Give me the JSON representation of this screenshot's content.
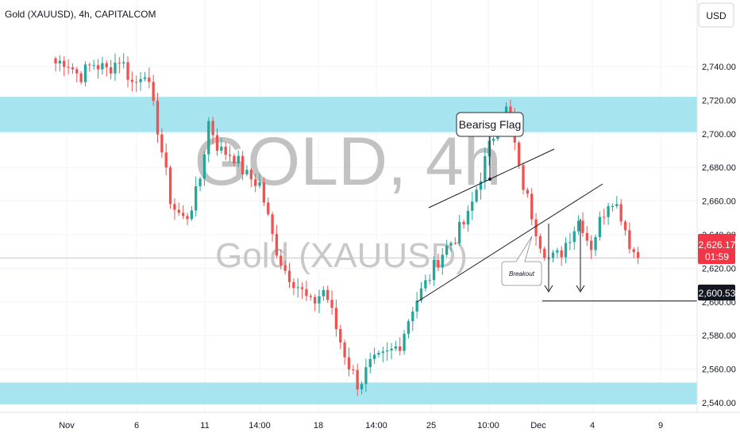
{
  "header": {
    "symbol_title": "Gold (XAUUSD), 4h, CAPITALCOM",
    "currency_button": "USD"
  },
  "watermark": {
    "main": "GOLD, 4h",
    "sub": "Gold (XAUUSD)"
  },
  "price_labels": {
    "current_price": "2,626.17",
    "countdown": "01:59",
    "target_price": "2,600.53"
  },
  "annotations": {
    "flag_label": "Bearisg Flag",
    "breakout_label": "Breakout"
  },
  "colors": {
    "bull": "#26a69a",
    "bear": "#ef5350",
    "zone": "#a6e4ef",
    "price_badge": "#f23645",
    "target_badge": "#131722"
  },
  "chart_data": {
    "type": "candlestick",
    "symbol": "Gold (XAUUSD)",
    "interval": "4h",
    "source": "CAPITALCOM",
    "y_axis": {
      "ticks": [
        2540,
        2560,
        2580,
        2600,
        2620,
        2640,
        2660,
        2680,
        2700,
        2720,
        2740
      ],
      "tick_labels": [
        "2,540.00",
        "2,560.00",
        "2,580.00",
        "2,600.00",
        "2,620.00",
        "2,640.00",
        "2,660.00",
        "2,680.00",
        "2,700.00",
        "2,720.00",
        "2,740.00"
      ],
      "range": [
        2535,
        2746
      ]
    },
    "x_axis": {
      "tick_labels": [
        "Nov",
        "6",
        "11",
        "14:00",
        "18",
        "14:00",
        "25",
        "10:00",
        "Dec",
        "4",
        "9"
      ],
      "range": [
        0,
        172
      ]
    },
    "candle_count": 138,
    "pivots": [
      [
        0,
        2742
      ],
      [
        3,
        2744
      ],
      [
        7,
        2734
      ],
      [
        11,
        2742
      ],
      [
        15,
        2738
      ],
      [
        19,
        2745
      ],
      [
        23,
        2728
      ],
      [
        26,
        2740
      ],
      [
        30,
        2703
      ],
      [
        34,
        2658
      ],
      [
        38,
        2648
      ],
      [
        42,
        2668
      ],
      [
        45,
        2708
      ],
      [
        48,
        2690
      ],
      [
        52,
        2688
      ],
      [
        56,
        2675
      ],
      [
        60,
        2670
      ],
      [
        64,
        2636
      ],
      [
        67,
        2620
      ],
      [
        71,
        2610
      ],
      [
        75,
        2598
      ],
      [
        79,
        2608
      ],
      [
        83,
        2580
      ],
      [
        86,
        2563
      ],
      [
        89,
        2550
      ],
      [
        92,
        2562
      ],
      [
        97,
        2568
      ],
      [
        101,
        2575
      ],
      [
        105,
        2598
      ],
      [
        109,
        2612
      ],
      [
        113,
        2628
      ],
      [
        117,
        2638
      ],
      [
        121,
        2650
      ],
      [
        124,
        2670
      ],
      [
        127,
        2690
      ],
      [
        130,
        2708
      ],
      [
        133,
        2716
      ],
      [
        136,
        2678
      ],
      [
        139,
        2658
      ],
      [
        142,
        2637
      ],
      [
        145,
        2625
      ],
      [
        148,
        2628
      ],
      [
        151,
        2640
      ],
      [
        154,
        2650
      ],
      [
        157,
        2632
      ],
      [
        160,
        2649
      ],
      [
        163,
        2664
      ],
      [
        166,
        2652
      ],
      [
        169,
        2632
      ],
      [
        171,
        2626.17
      ]
    ],
    "supply_zone": [
      2701,
      2722
    ],
    "demand_zone": [
      2539,
      2552
    ],
    "current_price": 2626.17,
    "target_price": 2600.53
  }
}
